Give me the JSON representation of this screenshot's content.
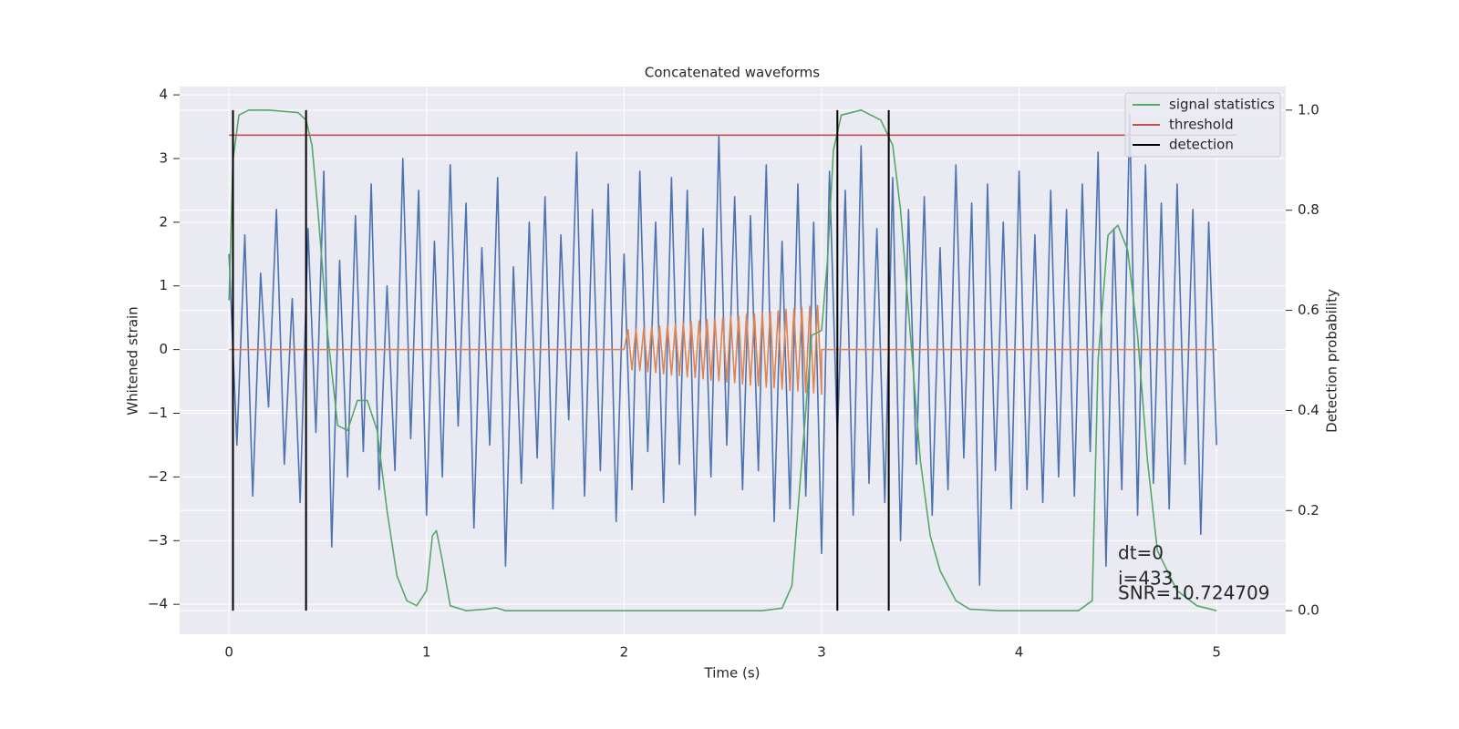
{
  "chart_data": {
    "type": "line",
    "title": "Concatenated waveforms",
    "xlabel": "Time (s)",
    "ylabel": "Whitened strain",
    "y2label": "Detection probability",
    "xlim": [
      -0.25,
      5.35
    ],
    "ylim": [
      -4.47,
      4.13
    ],
    "y2lim": [
      -0.047,
      1.047
    ],
    "xticks": [
      0,
      1,
      2,
      3,
      4,
      5
    ],
    "yticks": [
      {
        "value": -4,
        "label": "−4"
      },
      {
        "value": -3,
        "label": "−3"
      },
      {
        "value": -2,
        "label": "−2"
      },
      {
        "value": -1,
        "label": "−1"
      },
      0,
      1,
      2,
      3,
      4
    ],
    "y2ticks": [
      {
        "value": 0,
        "label": "0.0"
      },
      0.2,
      0.4,
      0.6,
      0.8,
      {
        "value": 1,
        "label": "1.0"
      }
    ],
    "grid": true,
    "legend": "upper right",
    "series": [
      {
        "color": "#4c72b0",
        "x": [
          0,
          0.04,
          0.08,
          0.12,
          0.16,
          0.2,
          0.24,
          0.28,
          0.32,
          0.36,
          0.4,
          0.44,
          0.48,
          0.52,
          0.56,
          0.6,
          0.64,
          0.68,
          0.72,
          0.76,
          0.8,
          0.84,
          0.88,
          0.92,
          0.96,
          1.0,
          1.04,
          1.08,
          1.12,
          1.16,
          1.2,
          1.24,
          1.28,
          1.32,
          1.36,
          1.4,
          1.44,
          1.48,
          1.52,
          1.56,
          1.6,
          1.64,
          1.68,
          1.72,
          1.76,
          1.8,
          1.84,
          1.88,
          1.92,
          1.96,
          2.0,
          2.04,
          2.08,
          2.12,
          2.16,
          2.2,
          2.24,
          2.28,
          2.32,
          2.36,
          2.4,
          2.44,
          2.48,
          2.52,
          2.56,
          2.6,
          2.64,
          2.68,
          2.72,
          2.76,
          2.8,
          2.84,
          2.88,
          2.92,
          2.96,
          3.0,
          3.04,
          3.08,
          3.12,
          3.16,
          3.2,
          3.24,
          3.28,
          3.32,
          3.36,
          3.4,
          3.44,
          3.48,
          3.52,
          3.56,
          3.6,
          3.64,
          3.68,
          3.72,
          3.76,
          3.8,
          3.84,
          3.88,
          3.92,
          3.96,
          4.0,
          4.04,
          4.08,
          4.12,
          4.16,
          4.2,
          4.24,
          4.28,
          4.32,
          4.36,
          4.4,
          4.44,
          4.48,
          4.52,
          4.56,
          4.6,
          4.64,
          4.68,
          4.72,
          4.76,
          4.8,
          4.84,
          4.88,
          4.92,
          4.96,
          5.0
        ],
        "values": [
          1.5,
          -1.5,
          1.8,
          -2.3,
          1.2,
          -0.9,
          2.2,
          -1.8,
          0.8,
          -2.4,
          1.9,
          -1.3,
          2.8,
          -3.1,
          1.4,
          -2.0,
          2.1,
          -1.6,
          2.6,
          -2.2,
          1.0,
          -1.9,
          3.0,
          -1.4,
          2.5,
          -2.6,
          1.7,
          -2.0,
          2.9,
          -1.2,
          2.3,
          -2.8,
          1.6,
          -1.5,
          2.7,
          -3.4,
          1.3,
          -2.1,
          2.0,
          -1.7,
          2.4,
          -2.5,
          1.8,
          -1.1,
          3.1,
          -2.3,
          2.2,
          -1.9,
          2.6,
          -2.7,
          1.5,
          -2.2,
          2.8,
          -1.6,
          2.0,
          -2.4,
          2.7,
          -1.8,
          2.5,
          -2.6,
          1.9,
          -2.0,
          3.35,
          -1.5,
          2.4,
          -2.2,
          2.1,
          -1.9,
          2.9,
          -2.7,
          1.7,
          -2.5,
          2.6,
          -2.3,
          2.0,
          -3.2,
          2.8,
          -1.4,
          2.5,
          -2.6,
          3.2,
          -2.1,
          1.9,
          -2.4,
          2.7,
          -3.0,
          2.2,
          -1.8,
          2.4,
          -2.6,
          1.6,
          -2.2,
          2.9,
          -1.7,
          2.3,
          -3.7,
          2.6,
          -1.9,
          2.0,
          -2.5,
          2.8,
          -2.2,
          1.8,
          -2.4,
          2.5,
          -2.0,
          2.2,
          -2.3,
          2.6,
          -1.6,
          3.1,
          -3.4,
          1.9,
          -2.2,
          3.7,
          -2.6,
          2.9,
          -2.1,
          2.3,
          -2.5,
          2.6,
          -1.8,
          2.2,
          -2.9,
          2.0,
          -1.5
        ]
      },
      {
        "color": "#dd8452",
        "x": [
          0,
          2.0,
          2.02,
          2.04,
          2.06,
          2.08,
          2.1,
          2.12,
          2.14,
          2.16,
          2.18,
          2.2,
          2.22,
          2.24,
          2.26,
          2.28,
          2.3,
          2.32,
          2.34,
          2.36,
          2.38,
          2.4,
          2.42,
          2.44,
          2.46,
          2.48,
          2.5,
          2.52,
          2.54,
          2.56,
          2.58,
          2.6,
          2.62,
          2.64,
          2.66,
          2.68,
          2.7,
          2.72,
          2.74,
          2.76,
          2.78,
          2.8,
          2.82,
          2.84,
          2.86,
          2.88,
          2.9,
          2.92,
          2.94,
          2.96,
          2.98,
          3.0,
          3.0,
          5.0
        ],
        "values": [
          0,
          0,
          0.31,
          -0.32,
          0.32,
          -0.33,
          0.34,
          -0.35,
          0.36,
          -0.36,
          0.37,
          -0.38,
          0.39,
          -0.4,
          0.4,
          -0.41,
          0.42,
          -0.43,
          0.44,
          -0.44,
          0.45,
          -0.46,
          0.47,
          -0.48,
          0.48,
          -0.49,
          0.5,
          -0.51,
          0.52,
          -0.52,
          0.53,
          -0.54,
          0.55,
          -0.56,
          0.56,
          -0.57,
          0.58,
          -0.59,
          0.6,
          -0.6,
          0.61,
          -0.62,
          0.63,
          -0.64,
          0.64,
          -0.65,
          0.66,
          -0.67,
          0.68,
          -0.68,
          0.69,
          -0.7,
          0,
          0
        ]
      },
      {
        "name": "signal statistics",
        "color": "#55a868",
        "axis": "y2",
        "x": [
          0,
          0.02,
          0.05,
          0.1,
          0.2,
          0.35,
          0.39,
          0.42,
          0.45,
          0.5,
          0.55,
          0.6,
          0.65,
          0.7,
          0.75,
          0.8,
          0.85,
          0.9,
          0.95,
          1.0,
          1.03,
          1.05,
          1.08,
          1.12,
          1.2,
          1.3,
          1.35,
          1.4,
          2.0,
          2.7,
          2.8,
          2.85,
          2.9,
          2.95,
          3.0,
          3.03,
          3.06,
          3.1,
          3.2,
          3.3,
          3.36,
          3.4,
          3.45,
          3.5,
          3.55,
          3.6,
          3.68,
          3.75,
          3.9,
          4.3,
          4.37,
          4.4,
          4.45,
          4.5,
          4.55,
          4.6,
          4.65,
          4.7,
          4.8,
          4.9,
          5.0
        ],
        "values": [
          0.62,
          0.9,
          0.99,
          1.0,
          1.0,
          0.995,
          0.98,
          0.93,
          0.8,
          0.55,
          0.37,
          0.36,
          0.42,
          0.42,
          0.36,
          0.2,
          0.07,
          0.02,
          0.01,
          0.04,
          0.15,
          0.16,
          0.1,
          0.01,
          0.0,
          0.003,
          0.006,
          0.0,
          0.0,
          0.0,
          0.005,
          0.05,
          0.3,
          0.55,
          0.56,
          0.7,
          0.92,
          0.99,
          1.0,
          0.98,
          0.93,
          0.8,
          0.55,
          0.3,
          0.15,
          0.08,
          0.02,
          0.003,
          0.0,
          0.0,
          0.02,
          0.5,
          0.75,
          0.77,
          0.72,
          0.55,
          0.3,
          0.12,
          0.04,
          0.01,
          0.0
        ]
      },
      {
        "name": "threshold",
        "color": "#c44e52",
        "axis": "y2",
        "x": [
          0,
          5.1
        ],
        "values": [
          0.95,
          0.95
        ]
      },
      {
        "name": "detection",
        "color": "#000000",
        "axis": "y2",
        "type": "vlines",
        "x": [
          0.02,
          0.39,
          3.08,
          3.34
        ],
        "ymin": 0,
        "ymax": 1
      }
    ],
    "annotations": [
      "dt=0",
      "i=433",
      "SNR=10.724709"
    ]
  }
}
